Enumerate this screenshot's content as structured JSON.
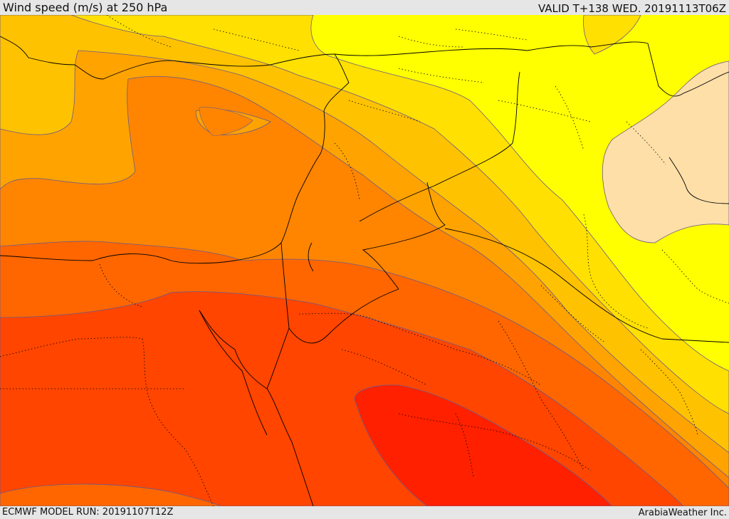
{
  "header": {
    "title": "Wind speed (m/s) at 250 hPa",
    "valid_time": "VALID T+138 WED. 20191113T06Z"
  },
  "footer": {
    "model_run": "ECMWF MODEL RUN: 20191107T12Z",
    "credit": "ArabiaWeather Inc."
  },
  "colors": {
    "band_1": "#ffff00",
    "band_2": "#ffe000",
    "band_3": "#ffc200",
    "band_4": "#ffa300",
    "band_5": "#ff8500",
    "band_6": "#ff6600",
    "band_7": "#ff4500",
    "band_8": "#ff2000",
    "low_wind_patch": "#ffdfa8",
    "contour": "#6a5a8a",
    "coastline": "#000000"
  }
}
